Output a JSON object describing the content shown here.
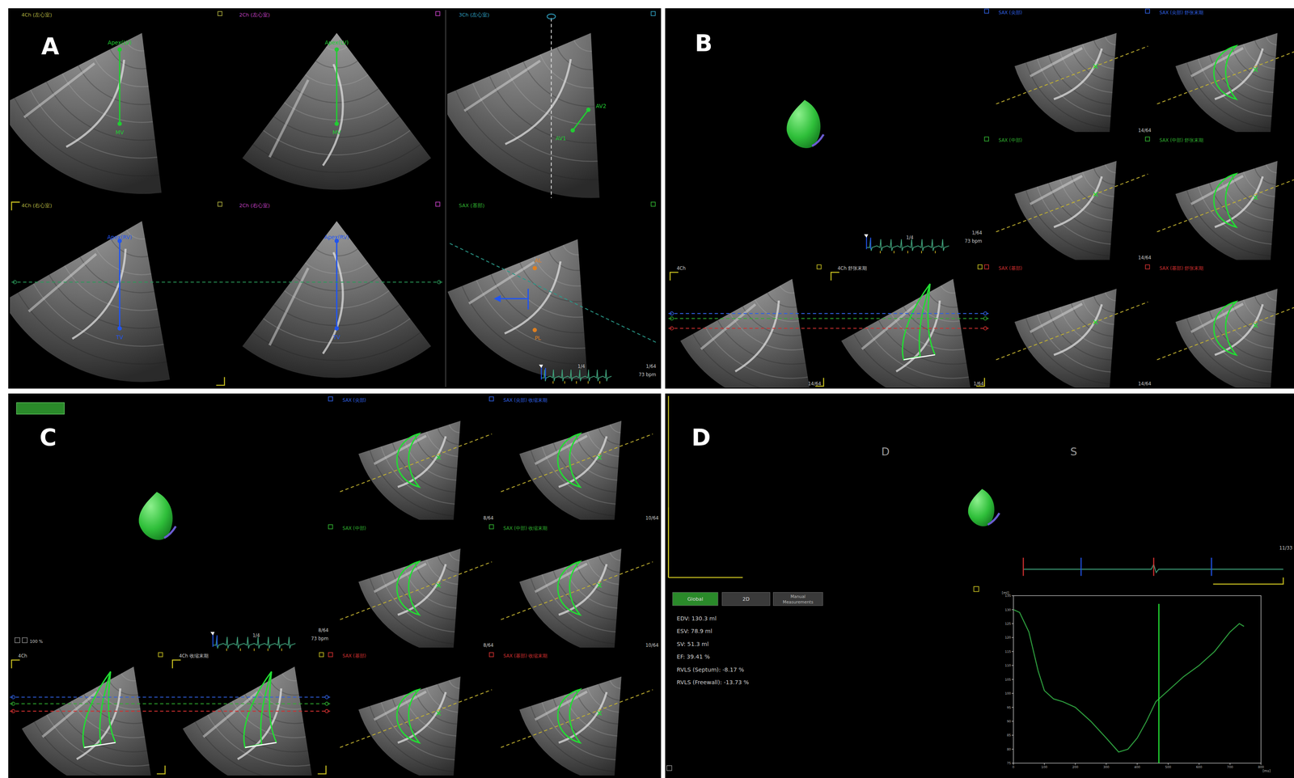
{
  "panels": {
    "A": {
      "label": "A",
      "views": [
        {
          "title": "4Ch (左心室)",
          "marks": [
            "Apex(LV)",
            "MV"
          ]
        },
        {
          "title": "2Ch (左心室)",
          "marks": [
            "Apex(LV)",
            "MV"
          ]
        },
        {
          "title": "3Ch (左心室)",
          "marks": [
            "AV2",
            "AV1"
          ]
        },
        {
          "title": "4Ch (右心室)",
          "marks": [
            "Apex(RV)",
            "TV"
          ]
        },
        {
          "title": "2Ch (右心室)",
          "marks": [
            "Apex(RV)",
            "TV"
          ]
        },
        {
          "title": "SAX (基部)",
          "marks": [
            "AL",
            "PL"
          ]
        }
      ],
      "phase": "1/4",
      "frame": "1/64",
      "heart_rate": "73 bpm"
    },
    "B": {
      "label": "B",
      "sax_views": [
        [
          "SAX (尖部)",
          "SAX (尖部) 舒张末期"
        ],
        [
          "SAX (中部)",
          "SAX (中部) 舒张末期"
        ],
        [
          "SAX (基部)",
          "SAX (基部) 舒张末期"
        ]
      ],
      "long_views": [
        "4Ch",
        "4Ch 舒张末期"
      ],
      "phase": "1/4",
      "frame": "1/64",
      "heart_rate": "73 bpm",
      "frame_labels": [
        "14/64",
        "14/64",
        "14/64",
        "1/64",
        "14/64"
      ]
    },
    "C": {
      "label": "C",
      "sax_views": [
        [
          "SAX (尖部)",
          "SAX (尖部) 收缩末期"
        ],
        [
          "SAX (中部)",
          "SAX (中部) 收缩末期"
        ],
        [
          "SAX (基部)",
          "SAX (基部) 收缩末期"
        ]
      ],
      "long_views": [
        "4Ch",
        "4Ch 收缩末期"
      ],
      "phase": "1/4",
      "frame": "8/64",
      "heart_rate": "73 bpm",
      "zoom": "100 %",
      "frame_labels": [
        "8/64",
        "10/64",
        "8/64",
        "10/64"
      ]
    },
    "D": {
      "label": "D",
      "phase_labels": [
        "D",
        "S"
      ],
      "frame": "11/33",
      "tabs": [
        "Global",
        "2D",
        "Manual Measurements"
      ],
      "results": [
        "EDV: 130.3 ml",
        "ESV: 78.9 ml",
        "SV: 51.3 ml",
        "EF: 39.41 %",
        "RVLS (Septum): -8.17 %",
        "RVLS (Freewall): -13.73 %"
      ]
    }
  },
  "chart_data": {
    "type": "line",
    "x_label": "[ms]",
    "y_label": "[ml]",
    "color": "#2e9e3e",
    "x": [
      0,
      20,
      50,
      80,
      100,
      130,
      160,
      200,
      250,
      300,
      340,
      370,
      400,
      430,
      460,
      500,
      550,
      600,
      650,
      700,
      730,
      745
    ],
    "values": [
      130,
      129,
      122,
      108,
      101,
      98,
      97,
      95,
      90,
      84,
      79,
      80,
      84,
      90,
      97,
      101,
      106,
      110,
      115,
      122,
      125,
      124
    ],
    "cursor_x": 470,
    "xlim": [
      0,
      800
    ],
    "ylim": [
      75,
      135
    ],
    "xticks": [
      0,
      100,
      200,
      300,
      400,
      500,
      600,
      700,
      800
    ],
    "yticks": [
      75,
      80,
      85,
      90,
      95,
      100,
      105,
      110,
      115,
      120,
      125,
      130,
      135
    ],
    "grid": false
  }
}
